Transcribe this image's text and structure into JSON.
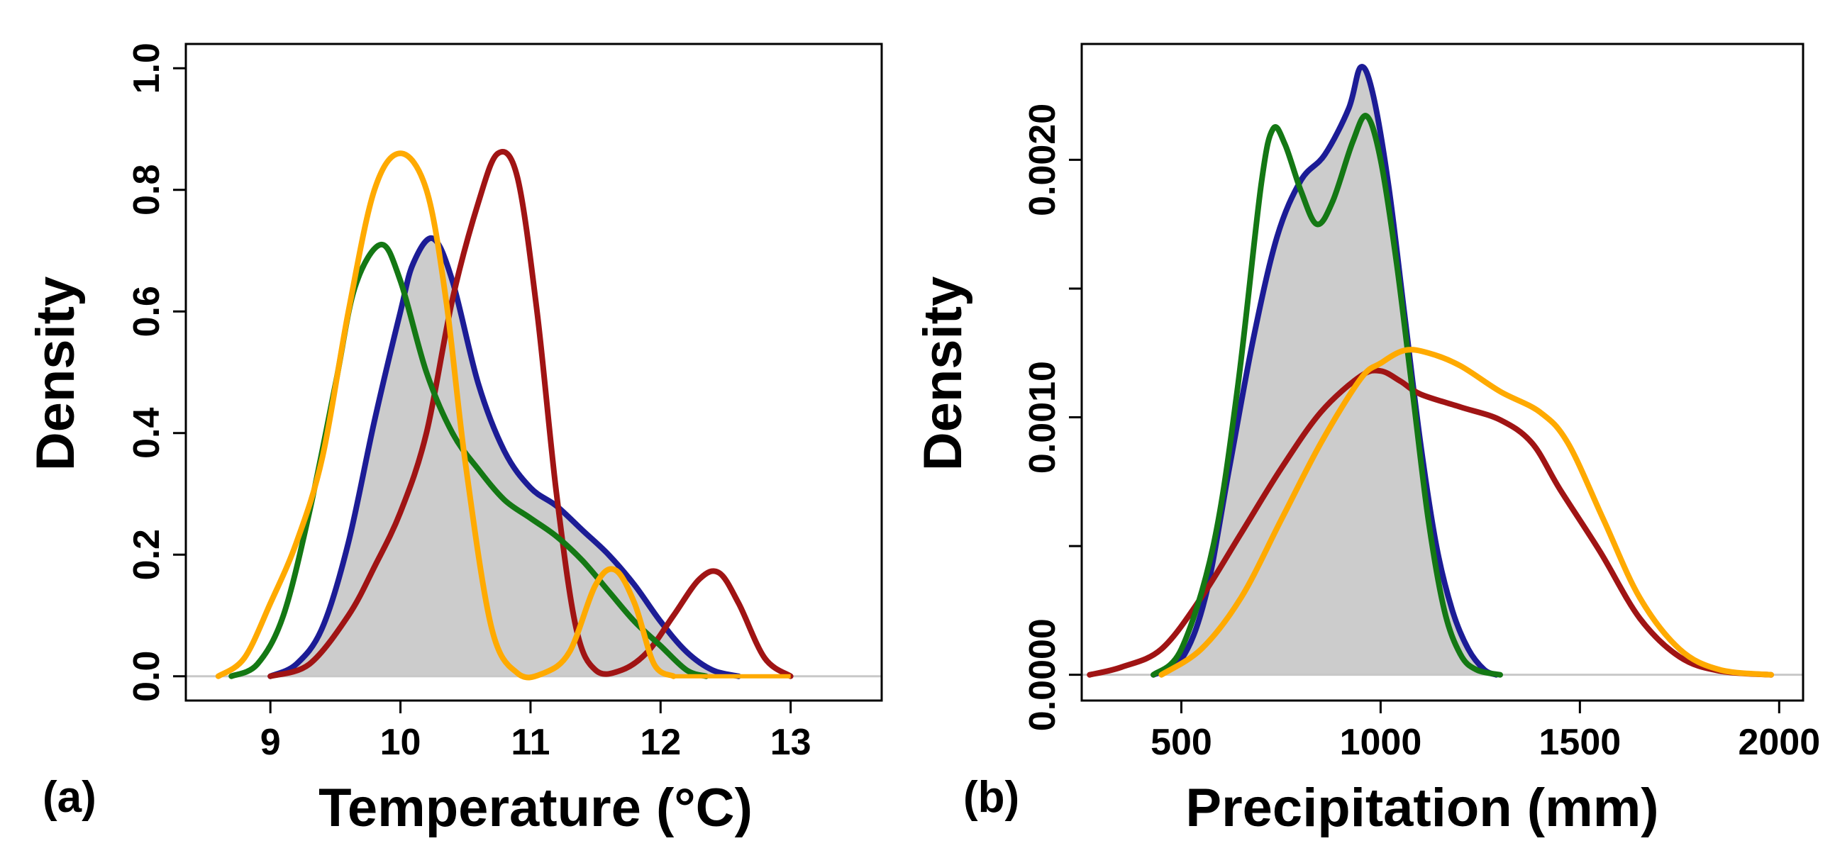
{
  "chart_data": [
    {
      "type": "line",
      "panel_label": "(a)",
      "xlabel": "Temperature (°C)",
      "ylabel": "Density",
      "xlim": [
        8.35,
        13.7
      ],
      "ylim": [
        -0.04,
        1.04
      ],
      "xticks": [
        9,
        10,
        11,
        12,
        13
      ],
      "yticks": [
        0.0,
        0.2,
        0.4,
        0.6,
        0.8,
        1.0
      ],
      "ytick_labels": [
        "0.0",
        "0.2",
        "0.4",
        "0.6",
        "0.8",
        "1.0"
      ],
      "baseline_y": 0,
      "series": [
        {
          "name": "blue",
          "color": "#1c1c96",
          "filled": true,
          "fill_color": "#cccccc",
          "points": [
            [
              9.0,
              0
            ],
            [
              9.2,
              0.02
            ],
            [
              9.4,
              0.08
            ],
            [
              9.6,
              0.22
            ],
            [
              9.8,
              0.42
            ],
            [
              10.0,
              0.6
            ],
            [
              10.1,
              0.68
            ],
            [
              10.25,
              0.72
            ],
            [
              10.4,
              0.65
            ],
            [
              10.6,
              0.48
            ],
            [
              10.8,
              0.37
            ],
            [
              11.0,
              0.31
            ],
            [
              11.2,
              0.28
            ],
            [
              11.4,
              0.24
            ],
            [
              11.6,
              0.2
            ],
            [
              11.8,
              0.15
            ],
            [
              12.0,
              0.09
            ],
            [
              12.2,
              0.04
            ],
            [
              12.4,
              0.01
            ],
            [
              12.6,
              0
            ]
          ]
        },
        {
          "name": "dark red",
          "color": "#a01414",
          "points": [
            [
              9.0,
              0
            ],
            [
              9.3,
              0.02
            ],
            [
              9.6,
              0.1
            ],
            [
              9.8,
              0.18
            ],
            [
              10.0,
              0.27
            ],
            [
              10.2,
              0.4
            ],
            [
              10.4,
              0.62
            ],
            [
              10.6,
              0.78
            ],
            [
              10.75,
              0.86
            ],
            [
              10.9,
              0.82
            ],
            [
              11.05,
              0.6
            ],
            [
              11.2,
              0.3
            ],
            [
              11.35,
              0.08
            ],
            [
              11.5,
              0.01
            ],
            [
              11.7,
              0.01
            ],
            [
              11.9,
              0.04
            ],
            [
              12.1,
              0.1
            ],
            [
              12.3,
              0.16
            ],
            [
              12.45,
              0.17
            ],
            [
              12.6,
              0.12
            ],
            [
              12.8,
              0.03
            ],
            [
              13.0,
              0
            ]
          ]
        },
        {
          "name": "green",
          "color": "#147814",
          "points": [
            [
              8.7,
              0
            ],
            [
              8.9,
              0.02
            ],
            [
              9.1,
              0.1
            ],
            [
              9.3,
              0.27
            ],
            [
              9.5,
              0.48
            ],
            [
              9.65,
              0.64
            ],
            [
              9.85,
              0.71
            ],
            [
              10.0,
              0.65
            ],
            [
              10.2,
              0.5
            ],
            [
              10.4,
              0.4
            ],
            [
              10.6,
              0.34
            ],
            [
              10.8,
              0.29
            ],
            [
              11.0,
              0.26
            ],
            [
              11.2,
              0.23
            ],
            [
              11.4,
              0.19
            ],
            [
              11.6,
              0.14
            ],
            [
              11.8,
              0.09
            ],
            [
              12.0,
              0.05
            ],
            [
              12.2,
              0.01
            ],
            [
              12.35,
              0
            ]
          ]
        },
        {
          "name": "orange",
          "color": "#ffaa00",
          "points": [
            [
              8.6,
              0
            ],
            [
              8.8,
              0.03
            ],
            [
              9.0,
              0.12
            ],
            [
              9.2,
              0.22
            ],
            [
              9.4,
              0.36
            ],
            [
              9.6,
              0.6
            ],
            [
              9.8,
              0.8
            ],
            [
              10.0,
              0.86
            ],
            [
              10.2,
              0.8
            ],
            [
              10.35,
              0.62
            ],
            [
              10.5,
              0.35
            ],
            [
              10.7,
              0.08
            ],
            [
              10.9,
              0.005
            ],
            [
              11.1,
              0.005
            ],
            [
              11.3,
              0.04
            ],
            [
              11.5,
              0.15
            ],
            [
              11.65,
              0.175
            ],
            [
              11.8,
              0.12
            ],
            [
              11.95,
              0.02
            ],
            [
              12.1,
              0
            ]
          ]
        }
      ]
    },
    {
      "type": "line",
      "panel_label": "(b)",
      "xlabel": "Precipitation (mm)",
      "ylabel": "Density",
      "xlim": [
        250,
        2060
      ],
      "ylim": [
        -0.0001,
        0.00245
      ],
      "xticks": [
        500,
        1000,
        1500,
        2000
      ],
      "yticks": [
        0.0,
        0.0005,
        0.001,
        0.0015,
        0.002
      ],
      "ytick_labels": [
        "0.0000",
        "",
        "0.0010",
        "",
        "0.0020"
      ],
      "baseline_y": 0,
      "series": [
        {
          "name": "blue",
          "color": "#1c1c96",
          "filled": true,
          "fill_color": "#cccccc",
          "points": [
            [
              430,
              0
            ],
            [
              500,
              6e-05
            ],
            [
              560,
              0.0003
            ],
            [
              620,
              0.0008
            ],
            [
              680,
              0.0013
            ],
            [
              740,
              0.0017
            ],
            [
              800,
              0.00192
            ],
            [
              860,
              0.00202
            ],
            [
              920,
              0.0022
            ],
            [
              950,
              0.00236
            ],
            [
              980,
              0.00226
            ],
            [
              1020,
              0.0019
            ],
            [
              1060,
              0.0014
            ],
            [
              1100,
              0.0009
            ],
            [
              1140,
              0.0005
            ],
            [
              1180,
              0.00025
            ],
            [
              1220,
              0.0001
            ],
            [
              1260,
              2e-05
            ],
            [
              1290,
              0
            ]
          ]
        },
        {
          "name": "dark red",
          "color": "#a01414",
          "points": [
            [
              270,
              0
            ],
            [
              350,
              3e-05
            ],
            [
              450,
              0.0001
            ],
            [
              550,
              0.0003
            ],
            [
              650,
              0.00055
            ],
            [
              750,
              0.0008
            ],
            [
              850,
              0.00102
            ],
            [
              950,
              0.00116
            ],
            [
              1000,
              0.00118
            ],
            [
              1050,
              0.00114
            ],
            [
              1100,
              0.00109
            ],
            [
              1200,
              0.00104
            ],
            [
              1300,
              0.00099
            ],
            [
              1380,
              0.0009
            ],
            [
              1450,
              0.00072
            ],
            [
              1550,
              0.00048
            ],
            [
              1650,
              0.00022
            ],
            [
              1750,
              7e-05
            ],
            [
              1850,
              1.5e-05
            ],
            [
              1980,
              0
            ]
          ]
        },
        {
          "name": "green",
          "color": "#147814",
          "points": [
            [
              430,
              0
            ],
            [
              500,
              0.0001
            ],
            [
              580,
              0.0005
            ],
            [
              640,
              0.0011
            ],
            [
              700,
              0.0019
            ],
            [
              730,
              0.00212
            ],
            [
              760,
              0.00206
            ],
            [
              800,
              0.00188
            ],
            [
              840,
              0.00175
            ],
            [
              880,
              0.00184
            ],
            [
              930,
              0.00207
            ],
            [
              965,
              0.00217
            ],
            [
              1000,
              0.002
            ],
            [
              1040,
              0.0016
            ],
            [
              1080,
              0.0011
            ],
            [
              1120,
              0.0006
            ],
            [
              1160,
              0.00025
            ],
            [
              1200,
              8e-05
            ],
            [
              1240,
              2e-05
            ],
            [
              1300,
              0
            ]
          ]
        },
        {
          "name": "orange",
          "color": "#ffaa00",
          "points": [
            [
              450,
              0
            ],
            [
              550,
              0.0001
            ],
            [
              650,
              0.0003
            ],
            [
              750,
              0.0006
            ],
            [
              850,
              0.0009
            ],
            [
              950,
              0.00115
            ],
            [
              1000,
              0.00121
            ],
            [
              1060,
              0.00126
            ],
            [
              1120,
              0.00125
            ],
            [
              1200,
              0.0012
            ],
            [
              1300,
              0.0011
            ],
            [
              1400,
              0.00102
            ],
            [
              1470,
              0.0009
            ],
            [
              1560,
              0.0006
            ],
            [
              1650,
              0.0003
            ],
            [
              1750,
              0.0001
            ],
            [
              1850,
              2e-05
            ],
            [
              1980,
              0
            ]
          ]
        }
      ]
    }
  ]
}
